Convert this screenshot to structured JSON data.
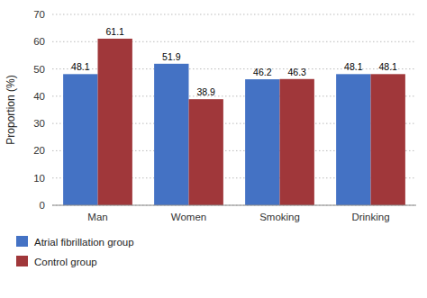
{
  "chart_data": {
    "type": "bar",
    "y_label": "Proportion (%)",
    "categories": [
      "Man",
      "Women",
      "Smoking",
      "Drinking"
    ],
    "series": [
      {
        "name": "Atrial fibrillation group",
        "color": "#4472C4",
        "values": [
          48.1,
          51.9,
          46.2,
          48.1
        ]
      },
      {
        "name": "Control group",
        "color": "#A0373A",
        "values": [
          61.1,
          38.9,
          46.3,
          48.1
        ]
      }
    ],
    "ylim": [
      0,
      70
    ],
    "yticks": [
      0,
      10,
      20,
      30,
      40,
      50,
      60,
      70
    ],
    "grid": true,
    "legend": "bottom",
    "data_labels": true
  }
}
